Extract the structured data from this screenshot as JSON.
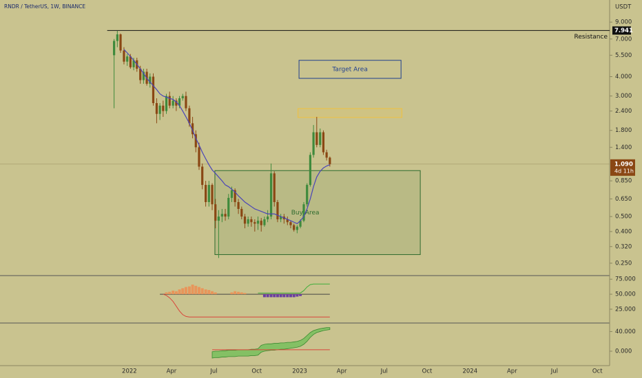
{
  "chart_data": [
    {
      "type": "candlestick",
      "title": "RNDR / TetherUS, 1W, BINANCE",
      "currency": "USDT",
      "log_scale": true,
      "up_color": "#3f8a3c",
      "down_color": "#8a4714",
      "x": [
        2021.91,
        2021.929,
        2021.948,
        2021.968,
        2021.987,
        2022.006,
        2022.025,
        2022.044,
        2022.064,
        2022.083,
        2022.102,
        2022.121,
        2022.14,
        2022.16,
        2022.179,
        2022.198,
        2022.217,
        2022.236,
        2022.256,
        2022.275,
        2022.294,
        2022.313,
        2022.332,
        2022.352,
        2022.371,
        2022.39,
        2022.409,
        2022.428,
        2022.448,
        2022.467,
        2022.486,
        2022.505,
        2022.524,
        2022.544,
        2022.563,
        2022.582,
        2022.601,
        2022.62,
        2022.64,
        2022.659,
        2022.678,
        2022.697,
        2022.716,
        2022.736,
        2022.755,
        2022.774,
        2022.793,
        2022.812,
        2022.832,
        2022.851,
        2022.87,
        2022.889,
        2022.908,
        2022.928,
        2022.947,
        2022.966,
        2022.985,
        2023.004,
        2023.024,
        2023.043,
        2023.062,
        2023.081,
        2023.1,
        2023.12,
        2023.139,
        2023.158,
        2023.177
      ],
      "open": [
        5.5,
        6.8,
        7.5,
        5.9,
        5.0,
        5.4,
        4.6,
        5.1,
        4.5,
        3.8,
        4.3,
        3.6,
        4.0,
        2.7,
        2.3,
        2.6,
        2.4,
        3.0,
        2.6,
        2.8,
        2.6,
        2.9,
        3.0,
        2.5,
        2.0,
        1.7,
        1.4,
        1.05,
        0.8,
        0.62,
        0.8,
        0.6,
        0.47,
        0.5,
        0.52,
        0.5,
        0.66,
        0.74,
        0.62,
        0.56,
        0.5,
        0.45,
        0.48,
        0.46,
        0.45,
        0.47,
        0.44,
        0.48,
        0.5,
        0.95,
        0.62,
        0.48,
        0.5,
        0.48,
        0.46,
        0.44,
        0.41,
        0.43,
        0.47,
        0.6,
        0.8,
        1.25,
        1.75,
        1.45,
        1.75,
        1.3,
        1.2
      ],
      "high": [
        7.0,
        7.9,
        7.6,
        6.2,
        5.6,
        5.6,
        5.3,
        5.3,
        4.7,
        4.5,
        4.5,
        4.2,
        4.2,
        2.9,
        2.7,
        2.8,
        3.1,
        3.2,
        3.0,
        2.9,
        3.0,
        3.1,
        3.2,
        2.6,
        2.2,
        1.8,
        1.5,
        1.1,
        0.85,
        0.85,
        0.82,
        0.65,
        0.55,
        0.56,
        0.56,
        0.7,
        0.78,
        0.76,
        0.65,
        0.58,
        0.52,
        0.5,
        0.5,
        0.48,
        0.5,
        0.49,
        0.5,
        0.55,
        1.1,
        0.98,
        0.64,
        0.52,
        0.52,
        0.5,
        0.47,
        0.45,
        0.44,
        0.48,
        0.62,
        0.82,
        1.3,
        1.95,
        2.2,
        1.85,
        1.8,
        1.35,
        1.22
      ],
      "low": [
        2.5,
        6.2,
        5.7,
        4.8,
        4.7,
        4.5,
        4.4,
        4.3,
        3.6,
        3.6,
        3.5,
        3.4,
        2.6,
        2.0,
        2.1,
        2.2,
        2.3,
        2.5,
        2.5,
        2.4,
        2.5,
        2.8,
        2.4,
        1.9,
        1.6,
        1.3,
        1.0,
        0.75,
        0.58,
        0.58,
        0.55,
        0.42,
        0.27,
        0.46,
        0.47,
        0.48,
        0.62,
        0.58,
        0.52,
        0.48,
        0.42,
        0.43,
        0.43,
        0.4,
        0.41,
        0.4,
        0.43,
        0.46,
        0.48,
        0.58,
        0.46,
        0.46,
        0.45,
        0.44,
        0.42,
        0.4,
        0.39,
        0.42,
        0.46,
        0.58,
        0.78,
        1.2,
        1.4,
        1.4,
        1.25,
        1.15,
        1.05
      ],
      "close": [
        6.8,
        7.5,
        5.9,
        5.0,
        5.4,
        4.6,
        5.1,
        4.5,
        3.8,
        4.3,
        3.6,
        4.0,
        2.7,
        2.3,
        2.6,
        2.4,
        3.0,
        2.6,
        2.8,
        2.6,
        2.9,
        3.0,
        2.5,
        2.0,
        1.7,
        1.4,
        1.05,
        0.8,
        0.62,
        0.8,
        0.6,
        0.47,
        0.5,
        0.52,
        0.5,
        0.66,
        0.74,
        0.62,
        0.56,
        0.5,
        0.45,
        0.48,
        0.46,
        0.45,
        0.47,
        0.44,
        0.48,
        0.5,
        0.95,
        0.62,
        0.48,
        0.5,
        0.48,
        0.46,
        0.44,
        0.41,
        0.43,
        0.47,
        0.6,
        0.8,
        1.25,
        1.75,
        1.45,
        1.75,
        1.3,
        1.2,
        1.09
      ],
      "moving_average": {
        "color": "#4a44b8",
        "values": [
          null,
          null,
          null,
          6.0,
          5.7,
          5.4,
          5.1,
          4.8,
          4.5,
          4.2,
          3.9,
          3.7,
          3.5,
          3.3,
          3.1,
          3.0,
          2.95,
          2.9,
          2.85,
          2.75,
          2.6,
          2.4,
          2.2,
          2.0,
          1.8,
          1.6,
          1.45,
          1.3,
          1.18,
          1.08,
          1.0,
          0.95,
          0.9,
          0.85,
          0.8,
          0.78,
          0.75,
          0.72,
          0.68,
          0.65,
          0.62,
          0.6,
          0.58,
          0.56,
          0.55,
          0.54,
          0.53,
          0.52,
          0.52,
          0.52,
          0.51,
          0.5,
          0.49,
          0.48,
          0.47,
          0.46,
          0.45,
          0.47,
          0.5,
          0.56,
          0.65,
          0.78,
          0.9,
          0.98,
          1.03,
          1.06,
          1.08
        ]
      },
      "ylim": [
        0.21,
        12.5
      ],
      "yticks": [
        {
          "value": 9,
          "label": "9.000"
        },
        {
          "value": 7,
          "label": "7.000"
        },
        {
          "value": 5.5,
          "label": "5.500"
        },
        {
          "value": 4,
          "label": "4.000"
        },
        {
          "value": 3,
          "label": "3.000"
        },
        {
          "value": 2.4,
          "label": "2.400"
        },
        {
          "value": 1.8,
          "label": "1.800"
        },
        {
          "value": 1.4,
          "label": "1.400"
        },
        {
          "value": 0.85,
          "label": "0.850"
        },
        {
          "value": 0.65,
          "label": "0.650"
        },
        {
          "value": 0.5,
          "label": "0.500"
        },
        {
          "value": 0.4,
          "label": "0.400"
        },
        {
          "value": 0.32,
          "label": "0.320"
        },
        {
          "value": 0.25,
          "label": "0.250"
        }
      ],
      "xlim": [
        2021.24,
        2024.82
      ],
      "xticks": [
        {
          "value": 2022,
          "label": "2022"
        },
        {
          "value": 2022.247,
          "label": "Apr"
        },
        {
          "value": 2022.496,
          "label": "Jul"
        },
        {
          "value": 2022.748,
          "label": "Oct"
        },
        {
          "value": 2023,
          "label": "2023"
        },
        {
          "value": 2023.247,
          "label": "Apr"
        },
        {
          "value": 2023.496,
          "label": "Jul"
        },
        {
          "value": 2023.748,
          "label": "Oct"
        },
        {
          "value": 2024,
          "label": "2024"
        },
        {
          "value": 2024.247,
          "label": "Apr"
        },
        {
          "value": 2024.496,
          "label": "Jul"
        },
        {
          "value": 2024.748,
          "label": "Oct"
        }
      ],
      "resistance": {
        "value": 7.941,
        "label": "7.941",
        "text": "Resistance",
        "color": "#111111"
      },
      "last_price": {
        "value": 1.09,
        "label": "1.090",
        "countdown": "4d 11h",
        "color": "#8a4714"
      },
      "zones": [
        {
          "label": "Target Area",
          "x_range": [
            2022.996,
            2023.595
          ],
          "y_range": [
            3.9,
            5.1
          ],
          "color": "#1f3f8f"
        },
        {
          "x_range": [
            2022.99,
            2023.6
          ],
          "y_range": [
            2.18,
            2.49
          ],
          "color": "#f0c040"
        },
        {
          "label": "Buy Area",
          "x_range": [
            2022.502,
            2023.708
          ],
          "y_range": [
            0.284,
            0.99
          ],
          "color": "#2d6a2d"
        }
      ]
    },
    {
      "type": "oscillator",
      "ylim": [
        2,
        81
      ],
      "yticks": [
        {
          "value": 75,
          "label": "75.000"
        },
        {
          "value": 50,
          "label": "50.000"
        },
        {
          "value": 25,
          "label": "25.000"
        }
      ],
      "baseline": 50,
      "bars": [
        {
          "color": "#e8955a",
          "values": [
            null,
            null,
            null,
            null,
            null,
            null,
            null,
            null,
            null,
            null,
            null,
            null,
            null,
            null,
            null,
            null,
            53,
            54,
            56,
            55,
            58,
            60,
            62,
            63,
            66,
            64,
            62,
            60,
            58,
            57,
            55,
            53,
            null,
            null,
            null,
            null,
            53,
            55,
            54,
            53,
            52,
            null,
            null,
            null,
            null,
            null,
            null,
            null,
            null,
            null,
            null,
            null,
            null,
            null,
            null,
            null,
            null,
            null,
            null,
            null,
            null,
            null,
            null,
            null,
            null,
            null,
            null
          ]
        },
        {
          "color": "#6a3fa0",
          "values": [
            null,
            null,
            null,
            null,
            null,
            null,
            null,
            null,
            null,
            null,
            null,
            null,
            null,
            null,
            null,
            null,
            null,
            null,
            null,
            null,
            null,
            null,
            null,
            null,
            null,
            null,
            null,
            null,
            null,
            null,
            null,
            null,
            null,
            null,
            null,
            null,
            null,
            null,
            null,
            null,
            null,
            null,
            null,
            null,
            null,
            null,
            45,
            45,
            45,
            45,
            45,
            45,
            45,
            45,
            45,
            45,
            46,
            47,
            null,
            null,
            null,
            null,
            null,
            null,
            null,
            null,
            null
          ]
        }
      ],
      "lines": [
        {
          "color": "#d9453a",
          "values": [
            null,
            null,
            null,
            null,
            null,
            null,
            null,
            null,
            null,
            null,
            null,
            null,
            null,
            null,
            null,
            50,
            48,
            44,
            38,
            30,
            22,
            16,
            13,
            12,
            12,
            12,
            12,
            12,
            12,
            12,
            12,
            12,
            12,
            12,
            12,
            12,
            12,
            12,
            12,
            12,
            12,
            12,
            12,
            12,
            12,
            12,
            12,
            12,
            12,
            12,
            12,
            12,
            12,
            12,
            12,
            12,
            12,
            12,
            12,
            12,
            12,
            12,
            12,
            12,
            12,
            12,
            12
          ]
        },
        {
          "color": "#3fae3a",
          "values": [
            null,
            null,
            null,
            null,
            null,
            null,
            null,
            null,
            null,
            null,
            null,
            null,
            null,
            null,
            null,
            null,
            null,
            null,
            null,
            null,
            null,
            null,
            null,
            null,
            null,
            null,
            null,
            null,
            null,
            null,
            null,
            null,
            null,
            null,
            null,
            null,
            null,
            null,
            null,
            null,
            null,
            null,
            null,
            null,
            52,
            52,
            52,
            52,
            52,
            52,
            52,
            52,
            52,
            52,
            52,
            52,
            52,
            52,
            56,
            62,
            66,
            67,
            67,
            67,
            67,
            67,
            67
          ]
        }
      ]
    },
    {
      "type": "band",
      "ylim": [
        -28,
        56
      ],
      "yticks": [
        {
          "value": 40,
          "label": "40.000"
        },
        {
          "value": 0,
          "label": "0.000"
        }
      ],
      "color": "#6cbf55",
      "upper": [
        null,
        null,
        null,
        null,
        null,
        null,
        null,
        null,
        null,
        null,
        null,
        null,
        null,
        null,
        null,
        null,
        null,
        null,
        null,
        null,
        null,
        null,
        null,
        null,
        null,
        null,
        null,
        null,
        null,
        null,
        -1,
        0,
        0,
        1,
        1,
        2,
        2,
        2,
        3,
        3,
        3,
        3,
        4,
        4,
        5,
        12,
        14,
        15,
        15,
        16,
        16,
        17,
        17,
        18,
        18,
        19,
        20,
        22,
        26,
        32,
        38,
        42,
        44,
        46,
        47,
        48,
        48
      ],
      "lower": [
        null,
        null,
        null,
        null,
        null,
        null,
        null,
        null,
        null,
        null,
        null,
        null,
        null,
        null,
        null,
        null,
        null,
        null,
        null,
        null,
        null,
        null,
        null,
        null,
        null,
        null,
        null,
        null,
        null,
        null,
        -14,
        -13,
        -13,
        -12,
        -12,
        -11,
        -11,
        -11,
        -10,
        -10,
        -10,
        -10,
        -9,
        -9,
        -8,
        -2,
        0,
        1,
        2,
        2,
        3,
        4,
        4,
        5,
        6,
        7,
        8,
        10,
        14,
        20,
        28,
        34,
        38,
        40,
        42,
        43,
        44
      ],
      "lines": [
        {
          "color": "#d9453a",
          "values": [
            null,
            null,
            null,
            null,
            null,
            null,
            null,
            null,
            null,
            null,
            null,
            null,
            null,
            null,
            null,
            null,
            null,
            null,
            null,
            null,
            null,
            null,
            null,
            null,
            null,
            null,
            null,
            null,
            null,
            null,
            3,
            3,
            3,
            3,
            3,
            3,
            3,
            3,
            3,
            3,
            3,
            3,
            3,
            3,
            3,
            3,
            3,
            3,
            3,
            3,
            3,
            3,
            3,
            3,
            3,
            3,
            3,
            3,
            3,
            3,
            3,
            3,
            3,
            3,
            3,
            3,
            3
          ]
        }
      ]
    }
  ]
}
